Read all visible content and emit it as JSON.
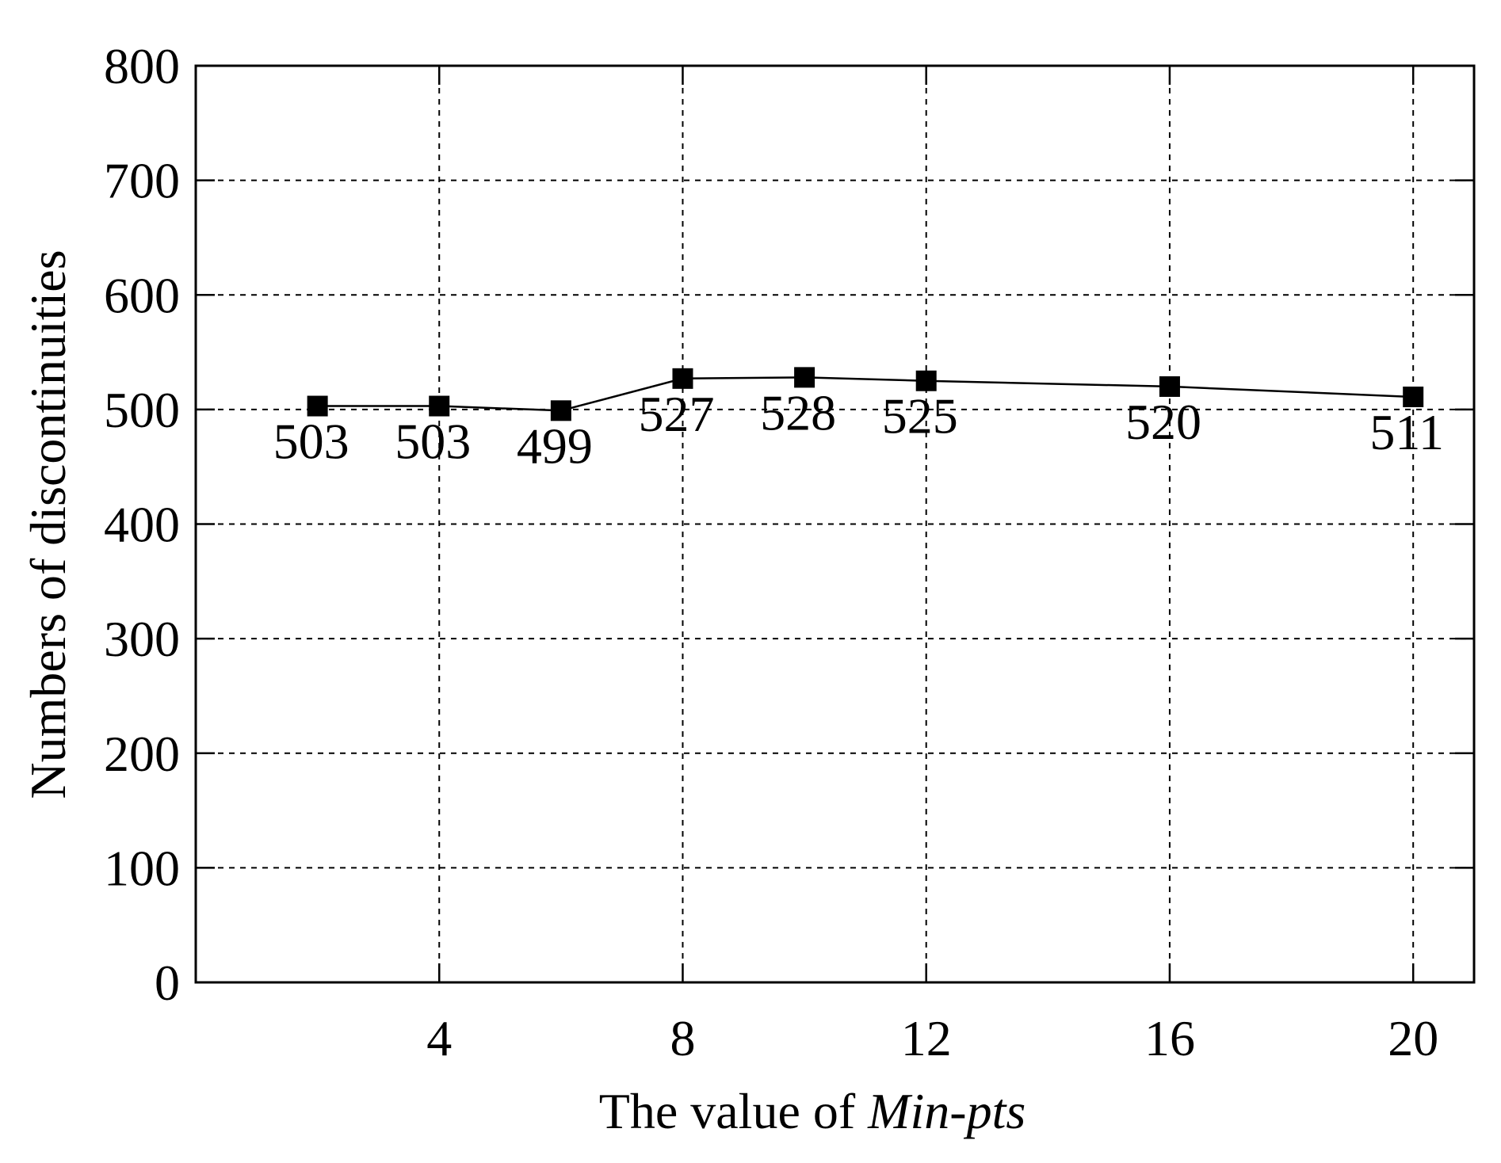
{
  "chart_data": {
    "type": "line",
    "x": [
      2,
      4,
      6,
      8,
      10,
      12,
      16,
      20
    ],
    "values": [
      503,
      503,
      499,
      527,
      528,
      525,
      520,
      511
    ],
    "data_labels": [
      "503",
      "503",
      "499",
      "527",
      "528",
      "525",
      "520",
      "511"
    ],
    "x_ticks": [
      4,
      8,
      12,
      16,
      20
    ],
    "x_tick_labels": [
      "4",
      "8",
      "12",
      "16",
      "20"
    ],
    "y_ticks": [
      0,
      100,
      200,
      300,
      400,
      500,
      600,
      700,
      800
    ],
    "y_tick_labels": [
      "0",
      "100",
      "200",
      "300",
      "400",
      "500",
      "600",
      "700",
      "800"
    ],
    "xlim": [
      0,
      21
    ],
    "ylim": [
      0,
      800
    ],
    "xlabel": "The value of ",
    "xlabel_italic": "Min-pts",
    "ylabel": "Numbers of discontinuities",
    "grid": true,
    "marker": "square",
    "line_color": "#000000"
  }
}
